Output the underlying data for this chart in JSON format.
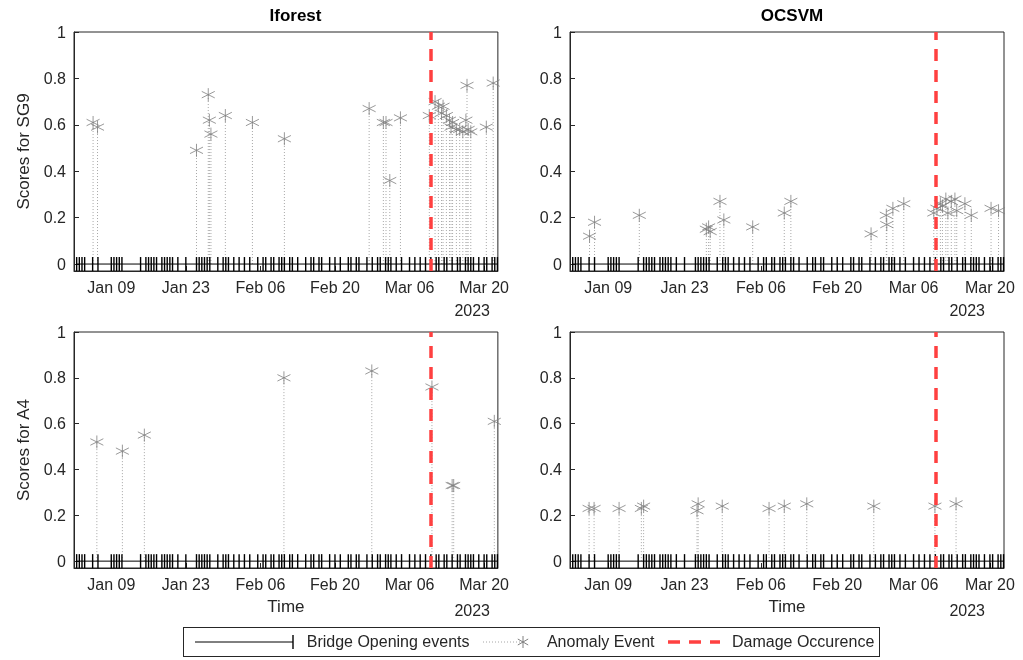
{
  "chart_data": [
    {
      "type": "lollipop",
      "title": "Iforest",
      "ylabel": "Scores for SG9",
      "xlim": [
        "2023-01-02",
        "2023-03-22T14:00"
      ],
      "ylim": [
        -0.03,
        1
      ],
      "yticks": [
        0,
        0.2,
        0.4,
        0.6,
        0.8,
        1
      ],
      "xticks": [
        {
          "value": "2023-01-09",
          "label": "Jan 09"
        },
        {
          "value": "2023-01-23",
          "label": "Jan 23"
        },
        {
          "value": "2023-02-06",
          "label": "Feb 06"
        },
        {
          "value": "2023-02-20",
          "label": "Feb 20"
        },
        {
          "value": "2023-03-06",
          "label": "Mar 06"
        },
        {
          "value": "2023-03-20",
          "label": "Mar 20"
        }
      ],
      "annotations": [
        "2023"
      ],
      "legend": "bottom",
      "series": [
        {
          "name": "Bridge Opening events",
          "type": "line",
          "color": "#000000",
          "x": [
            "2023-01-02T12:00",
            "2023-01-03",
            "2023-01-03T12:00",
            "2023-01-04",
            "2023-01-05T12:00",
            "2023-01-06T12:00",
            "2023-01-09",
            "2023-01-09T12:00",
            "2023-01-10",
            "2023-01-10T12:00",
            "2023-01-11",
            "2023-01-14T12:00",
            "2023-01-15T12:00",
            "2023-01-16",
            "2023-01-16T12:00",
            "2023-01-17",
            "2023-01-17T12:00",
            "2023-01-18T12:00",
            "2023-01-19",
            "2023-01-19T12:00",
            "2023-01-20",
            "2023-01-20T12:00",
            "2023-01-21T12:00",
            "2023-01-23",
            "2023-01-25",
            "2023-01-25T12:00",
            "2023-01-26",
            "2023-01-26T12:00",
            "2023-01-27",
            "2023-01-27T12:00",
            "2023-01-29",
            "2023-01-30",
            "2023-01-30T12:00",
            "2023-01-31",
            "2023-02-01",
            "2023-02-02",
            "2023-02-03",
            "2023-02-04",
            "2023-02-05T12:00",
            "2023-02-06T12:00",
            "2023-02-07",
            "2023-02-08",
            "2023-02-08T12:00",
            "2023-02-09T12:00",
            "2023-02-10",
            "2023-02-10T12:00",
            "2023-02-11T12:00",
            "2023-02-12",
            "2023-02-13",
            "2023-02-14T12:00",
            "2023-02-15T12:00",
            "2023-02-16",
            "2023-02-17",
            "2023-02-17T12:00",
            "2023-02-19",
            "2023-02-20",
            "2023-02-21",
            "2023-02-22T12:00",
            "2023-02-23",
            "2023-02-24",
            "2023-02-24T12:00",
            "2023-02-26",
            "2023-02-27",
            "2023-02-28",
            "2023-02-28T12:00",
            "2023-03-01T12:00",
            "2023-03-02",
            "2023-03-02T12:00",
            "2023-03-03T12:00",
            "2023-03-04T12:00",
            "2023-03-06",
            "2023-03-07",
            "2023-03-08",
            "2023-03-09",
            "2023-03-10",
            "2023-03-11",
            "2023-03-11T12:00",
            "2023-03-12T12:00",
            "2023-03-13",
            "2023-03-14",
            "2023-03-15",
            "2023-03-15T12:00",
            "2023-03-16T12:00",
            "2023-03-17",
            "2023-03-17T12:00",
            "2023-03-18",
            "2023-03-19",
            "2023-03-20",
            "2023-03-20T12:00",
            "2023-03-21T12:00",
            "2023-03-22",
            "2023-03-22T12:00"
          ],
          "values": [
            0,
            0,
            0,
            0,
            0,
            0,
            0,
            0,
            0,
            0,
            0,
            0,
            0,
            0,
            0,
            0,
            0,
            0,
            0,
            0,
            0,
            0,
            0,
            0,
            0,
            0,
            0,
            0,
            0,
            0,
            0,
            0,
            0,
            0,
            0,
            0,
            0,
            0,
            0,
            0,
            0,
            0,
            0,
            0,
            0,
            0,
            0,
            0,
            0,
            0,
            0,
            0,
            0,
            0,
            0,
            0,
            0,
            0,
            0,
            0,
            0,
            0,
            0,
            0,
            0,
            0,
            0,
            0,
            0,
            0,
            0,
            0,
            0,
            0,
            0,
            0,
            0,
            0,
            0,
            0,
            0,
            0,
            0,
            0,
            0,
            0,
            0,
            0,
            0,
            0,
            0,
            0
          ]
        },
        {
          "name": "Anomaly Event",
          "color": "#808080",
          "marker": "cross",
          "line_style": "dotted",
          "x": [
            "2023-01-05T14:00",
            "2023-01-06T10:00",
            "2023-01-25",
            "2023-01-27T05:00",
            "2023-01-27T10:00",
            "2023-01-27T17:00",
            "2023-01-30T10:00",
            "2023-02-04T12:00",
            "2023-02-10T12:00",
            "2023-02-26T10:00",
            "2023-03-01T02:00",
            "2023-03-01T14:00",
            "2023-03-02T07:00",
            "2023-03-04T07:00",
            "2023-03-09T17:00",
            "2023-03-10T19:00",
            "2023-03-11T10:00",
            "2023-03-12",
            "2023-03-12T07:00",
            "2023-03-12T22:00",
            "2023-03-13T12:00",
            "2023-03-13T19:00",
            "2023-03-14T02:00",
            "2023-03-14T19:00",
            "2023-03-15T10:00",
            "2023-03-16",
            "2023-03-16T14:00",
            "2023-03-16T19:00",
            "2023-03-17",
            "2023-03-17T12:00",
            "2023-03-20T10:00",
            "2023-03-21T17:00"
          ],
          "values": [
            0.61,
            0.59,
            0.49,
            0.73,
            0.62,
            0.56,
            0.64,
            0.61,
            0.54,
            0.67,
            0.61,
            0.61,
            0.36,
            0.63,
            0.64,
            0.7,
            0.68,
            0.65,
            0.68,
            0.64,
            0.62,
            0.59,
            0.61,
            0.58,
            0.58,
            0.57,
            0.62,
            0.77,
            0.58,
            0.57,
            0.59,
            0.78
          ]
        }
      ],
      "ref_lines": [
        {
          "axis": "x",
          "value": "2023-03-10",
          "label": "Damage Occurence",
          "color": "#ff4040",
          "line_style": "dashed"
        }
      ]
    },
    {
      "type": "lollipop",
      "title": "OCSVM",
      "xlim": [
        "2023-01-02",
        "2023-03-22T14:00"
      ],
      "ylim": [
        -0.03,
        1
      ],
      "yticks": [
        0,
        0.2,
        0.4,
        0.6,
        0.8,
        1
      ],
      "xticks": [
        {
          "value": "2023-01-09",
          "label": "Jan 09"
        },
        {
          "value": "2023-01-23",
          "label": "Jan 23"
        },
        {
          "value": "2023-02-06",
          "label": "Feb 06"
        },
        {
          "value": "2023-02-20",
          "label": "Feb 20"
        },
        {
          "value": "2023-03-06",
          "label": "Mar 06"
        },
        {
          "value": "2023-03-20",
          "label": "Mar 20"
        }
      ],
      "annotations": [
        "2023"
      ],
      "series": [
        {
          "type": "line",
          "color": "#000000",
          "x": [
            "2023-01-02T12:00",
            "2023-01-03",
            "2023-01-03T12:00",
            "2023-01-04",
            "2023-01-05T12:00",
            "2023-01-06T12:00",
            "2023-01-09",
            "2023-01-09T12:00",
            "2023-01-10",
            "2023-01-10T12:00",
            "2023-01-11",
            "2023-01-14T12:00",
            "2023-01-15T12:00",
            "2023-01-16",
            "2023-01-16T12:00",
            "2023-01-17",
            "2023-01-17T12:00",
            "2023-01-18T12:00",
            "2023-01-19",
            "2023-01-19T12:00",
            "2023-01-20",
            "2023-01-20T12:00",
            "2023-01-21T12:00",
            "2023-01-23",
            "2023-01-25",
            "2023-01-25T12:00",
            "2023-01-26",
            "2023-01-26T12:00",
            "2023-01-27",
            "2023-01-27T12:00",
            "2023-01-29",
            "2023-01-30",
            "2023-01-30T12:00",
            "2023-01-31",
            "2023-02-01",
            "2023-02-02",
            "2023-02-03",
            "2023-02-04",
            "2023-02-05T12:00",
            "2023-02-06T12:00",
            "2023-02-07",
            "2023-02-08",
            "2023-02-08T12:00",
            "2023-02-09T12:00",
            "2023-02-10",
            "2023-02-10T12:00",
            "2023-02-11T12:00",
            "2023-02-12",
            "2023-02-13",
            "2023-02-14T12:00",
            "2023-02-15T12:00",
            "2023-02-16",
            "2023-02-17",
            "2023-02-17T12:00",
            "2023-02-19",
            "2023-02-20",
            "2023-02-21",
            "2023-02-22T12:00",
            "2023-02-23",
            "2023-02-24",
            "2023-02-24T12:00",
            "2023-02-26",
            "2023-02-27",
            "2023-02-28",
            "2023-02-28T12:00",
            "2023-03-01T12:00",
            "2023-03-02",
            "2023-03-02T12:00",
            "2023-03-03T12:00",
            "2023-03-04T12:00",
            "2023-03-06",
            "2023-03-07",
            "2023-03-08",
            "2023-03-09",
            "2023-03-10",
            "2023-03-11",
            "2023-03-11T12:00",
            "2023-03-12T12:00",
            "2023-03-13",
            "2023-03-14",
            "2023-03-15",
            "2023-03-15T12:00",
            "2023-03-16T12:00",
            "2023-03-17",
            "2023-03-17T12:00",
            "2023-03-18",
            "2023-03-19",
            "2023-03-20",
            "2023-03-20T12:00",
            "2023-03-21T12:00",
            "2023-03-22",
            "2023-03-22T12:00"
          ],
          "values": [
            0,
            0,
            0,
            0,
            0,
            0,
            0,
            0,
            0,
            0,
            0,
            0,
            0,
            0,
            0,
            0,
            0,
            0,
            0,
            0,
            0,
            0,
            0,
            0,
            0,
            0,
            0,
            0,
            0,
            0,
            0,
            0,
            0,
            0,
            0,
            0,
            0,
            0,
            0,
            0,
            0,
            0,
            0,
            0,
            0,
            0,
            0,
            0,
            0,
            0,
            0,
            0,
            0,
            0,
            0,
            0,
            0,
            0,
            0,
            0,
            0,
            0,
            0,
            0,
            0,
            0,
            0,
            0,
            0,
            0,
            0,
            0,
            0,
            0,
            0,
            0,
            0,
            0,
            0,
            0,
            0,
            0,
            0,
            0,
            0,
            0,
            0,
            0,
            0,
            0,
            0,
            0
          ]
        },
        {
          "color": "#808080",
          "marker": "cross",
          "line_style": "dotted",
          "x": [
            "2023-01-05T14:00",
            "2023-01-06T12:00",
            "2023-01-14T17:00",
            "2023-01-27",
            "2023-01-27T10:00",
            "2023-01-27T17:00",
            "2023-01-29T12:00",
            "2023-01-30T05:00",
            "2023-02-04T12:00",
            "2023-02-10T07:00",
            "2023-02-11T12:00",
            "2023-02-26T05:00",
            "2023-03-01",
            "2023-03-01T02:00",
            "2023-03-02T05:00",
            "2023-03-04T05:00",
            "2023-03-09T17:00",
            "2023-03-10T07:00",
            "2023-03-10T22:00",
            "2023-03-11T07:00",
            "2023-03-11T22:00",
            "2023-03-12T07:00",
            "2023-03-12T22:00",
            "2023-03-13T14:00",
            "2023-03-13T22:00",
            "2023-03-15T10:00",
            "2023-03-16T14:00",
            "2023-03-20T05:00",
            "2023-03-21T14:00"
          ],
          "values": [
            0.12,
            0.18,
            0.21,
            0.15,
            0.16,
            0.14,
            0.27,
            0.19,
            0.16,
            0.22,
            0.27,
            0.13,
            0.21,
            0.17,
            0.24,
            0.26,
            0.22,
            0.24,
            0.26,
            0.25,
            0.28,
            0.22,
            0.27,
            0.28,
            0.23,
            0.26,
            0.21,
            0.24,
            0.23
          ]
        }
      ],
      "ref_lines": [
        {
          "axis": "x",
          "value": "2023-03-10",
          "color": "#ff4040",
          "line_style": "dashed"
        }
      ]
    },
    {
      "type": "lollipop",
      "ylabel": "Scores for A4",
      "xlabel": "Time",
      "xlim": [
        "2023-01-02",
        "2023-03-22T14:00"
      ],
      "ylim": [
        -0.03,
        1
      ],
      "yticks": [
        0,
        0.2,
        0.4,
        0.6,
        0.8,
        1
      ],
      "xticks": [
        {
          "value": "2023-01-09",
          "label": "Jan 09"
        },
        {
          "value": "2023-01-23",
          "label": "Jan 23"
        },
        {
          "value": "2023-02-06",
          "label": "Feb 06"
        },
        {
          "value": "2023-02-20",
          "label": "Feb 20"
        },
        {
          "value": "2023-03-06",
          "label": "Mar 06"
        },
        {
          "value": "2023-03-20",
          "label": "Mar 20"
        }
      ],
      "annotations": [
        "2023"
      ],
      "series": [
        {
          "type": "line",
          "color": "#000000",
          "x": [
            "2023-01-02T12:00",
            "2023-01-03",
            "2023-01-03T12:00",
            "2023-01-04",
            "2023-01-05T12:00",
            "2023-01-06T12:00",
            "2023-01-09",
            "2023-01-09T12:00",
            "2023-01-10",
            "2023-01-10T12:00",
            "2023-01-11",
            "2023-01-14T12:00",
            "2023-01-15T12:00",
            "2023-01-16",
            "2023-01-16T12:00",
            "2023-01-17",
            "2023-01-17T12:00",
            "2023-01-18T12:00",
            "2023-01-19",
            "2023-01-19T12:00",
            "2023-01-20",
            "2023-01-20T12:00",
            "2023-01-21T12:00",
            "2023-01-23",
            "2023-01-25",
            "2023-01-25T12:00",
            "2023-01-26",
            "2023-01-26T12:00",
            "2023-01-27",
            "2023-01-27T12:00",
            "2023-01-29",
            "2023-01-30",
            "2023-01-30T12:00",
            "2023-01-31",
            "2023-02-01",
            "2023-02-02",
            "2023-02-03",
            "2023-02-04",
            "2023-02-05T12:00",
            "2023-02-06T12:00",
            "2023-02-07",
            "2023-02-08",
            "2023-02-08T12:00",
            "2023-02-09T12:00",
            "2023-02-10",
            "2023-02-10T12:00",
            "2023-02-11T12:00",
            "2023-02-12",
            "2023-02-13",
            "2023-02-14T12:00",
            "2023-02-15T12:00",
            "2023-02-16",
            "2023-02-17",
            "2023-02-17T12:00",
            "2023-02-19",
            "2023-02-20",
            "2023-02-21",
            "2023-02-22T12:00",
            "2023-02-23",
            "2023-02-24",
            "2023-02-24T12:00",
            "2023-02-26",
            "2023-02-27",
            "2023-02-28",
            "2023-02-28T12:00",
            "2023-03-01T12:00",
            "2023-03-02",
            "2023-03-02T12:00",
            "2023-03-03T12:00",
            "2023-03-04T12:00",
            "2023-03-06",
            "2023-03-07",
            "2023-03-08",
            "2023-03-09",
            "2023-03-10",
            "2023-03-11",
            "2023-03-11T12:00",
            "2023-03-12T12:00",
            "2023-03-13",
            "2023-03-14",
            "2023-03-15",
            "2023-03-15T12:00",
            "2023-03-16T12:00",
            "2023-03-17",
            "2023-03-17T12:00",
            "2023-03-18",
            "2023-03-19",
            "2023-03-20",
            "2023-03-20T12:00",
            "2023-03-21T12:00",
            "2023-03-22",
            "2023-03-22T12:00"
          ],
          "values": [
            0,
            0,
            0,
            0,
            0,
            0,
            0,
            0,
            0,
            0,
            0,
            0,
            0,
            0,
            0,
            0,
            0,
            0,
            0,
            0,
            0,
            0,
            0,
            0,
            0,
            0,
            0,
            0,
            0,
            0,
            0,
            0,
            0,
            0,
            0,
            0,
            0,
            0,
            0,
            0,
            0,
            0,
            0,
            0,
            0,
            0,
            0,
            0,
            0,
            0,
            0,
            0,
            0,
            0,
            0,
            0,
            0,
            0,
            0,
            0,
            0,
            0,
            0,
            0,
            0,
            0,
            0,
            0,
            0,
            0,
            0,
            0,
            0,
            0,
            0,
            0,
            0,
            0,
            0,
            0,
            0,
            0,
            0,
            0,
            0,
            0,
            0,
            0,
            0,
            0,
            0,
            0
          ]
        },
        {
          "color": "#808080",
          "marker": "cross",
          "line_style": "dotted",
          "x": [
            "2023-01-06T07:00",
            "2023-01-11T02:00",
            "2023-01-15T05:00",
            "2023-02-10T10:00",
            "2023-02-26T22:00",
            "2023-03-10T05:00",
            "2023-03-14",
            "2023-03-14T07:00",
            "2023-03-21T22:00"
          ],
          "values": [
            0.52,
            0.48,
            0.55,
            0.8,
            0.83,
            0.76,
            0.33,
            0.33,
            0.61
          ]
        }
      ],
      "ref_lines": [
        {
          "axis": "x",
          "value": "2023-03-10",
          "color": "#ff4040",
          "line_style": "dashed"
        }
      ]
    },
    {
      "type": "lollipop",
      "xlabel": "Time",
      "xlim": [
        "2023-01-02",
        "2023-03-22T14:00"
      ],
      "ylim": [
        -0.03,
        1
      ],
      "yticks": [
        0,
        0.2,
        0.4,
        0.6,
        0.8,
        1
      ],
      "xticks": [
        {
          "value": "2023-01-09",
          "label": "Jan 09"
        },
        {
          "value": "2023-01-23",
          "label": "Jan 23"
        },
        {
          "value": "2023-02-06",
          "label": "Feb 06"
        },
        {
          "value": "2023-02-20",
          "label": "Feb 20"
        },
        {
          "value": "2023-03-06",
          "label": "Mar 06"
        },
        {
          "value": "2023-03-20",
          "label": "Mar 20"
        }
      ],
      "annotations": [
        "2023"
      ],
      "series": [
        {
          "type": "line",
          "color": "#000000",
          "x": [
            "2023-01-02T12:00",
            "2023-01-03",
            "2023-01-03T12:00",
            "2023-01-04",
            "2023-01-05T12:00",
            "2023-01-06T12:00",
            "2023-01-09",
            "2023-01-09T12:00",
            "2023-01-10",
            "2023-01-10T12:00",
            "2023-01-11",
            "2023-01-14T12:00",
            "2023-01-15T12:00",
            "2023-01-16",
            "2023-01-16T12:00",
            "2023-01-17",
            "2023-01-17T12:00",
            "2023-01-18T12:00",
            "2023-01-19",
            "2023-01-19T12:00",
            "2023-01-20",
            "2023-01-20T12:00",
            "2023-01-21T12:00",
            "2023-01-23",
            "2023-01-25",
            "2023-01-25T12:00",
            "2023-01-26",
            "2023-01-26T12:00",
            "2023-01-27",
            "2023-01-27T12:00",
            "2023-01-29",
            "2023-01-30",
            "2023-01-30T12:00",
            "2023-01-31",
            "2023-02-01",
            "2023-02-02",
            "2023-02-03",
            "2023-02-04",
            "2023-02-05T12:00",
            "2023-02-06T12:00",
            "2023-02-07",
            "2023-02-08",
            "2023-02-08T12:00",
            "2023-02-09T12:00",
            "2023-02-10",
            "2023-02-10T12:00",
            "2023-02-11T12:00",
            "2023-02-12",
            "2023-02-13",
            "2023-02-14T12:00",
            "2023-02-15T12:00",
            "2023-02-16",
            "2023-02-17",
            "2023-02-17T12:00",
            "2023-02-19",
            "2023-02-20",
            "2023-02-21",
            "2023-02-22T12:00",
            "2023-02-23",
            "2023-02-24",
            "2023-02-24T12:00",
            "2023-02-26",
            "2023-02-27",
            "2023-02-28",
            "2023-02-28T12:00",
            "2023-03-01T12:00",
            "2023-03-02",
            "2023-03-02T12:00",
            "2023-03-03T12:00",
            "2023-03-04T12:00",
            "2023-03-06",
            "2023-03-07",
            "2023-03-08",
            "2023-03-09",
            "2023-03-10",
            "2023-03-11",
            "2023-03-11T12:00",
            "2023-03-12T12:00",
            "2023-03-13",
            "2023-03-14",
            "2023-03-15",
            "2023-03-15T12:00",
            "2023-03-16T12:00",
            "2023-03-17",
            "2023-03-17T12:00",
            "2023-03-18",
            "2023-03-19",
            "2023-03-20",
            "2023-03-20T12:00",
            "2023-03-21T12:00",
            "2023-03-22",
            "2023-03-22T12:00"
          ],
          "values": [
            0,
            0,
            0,
            0,
            0,
            0,
            0,
            0,
            0,
            0,
            0,
            0,
            0,
            0,
            0,
            0,
            0,
            0,
            0,
            0,
            0,
            0,
            0,
            0,
            0,
            0,
            0,
            0,
            0,
            0,
            0,
            0,
            0,
            0,
            0,
            0,
            0,
            0,
            0,
            0,
            0,
            0,
            0,
            0,
            0,
            0,
            0,
            0,
            0,
            0,
            0,
            0,
            0,
            0,
            0,
            0,
            0,
            0,
            0,
            0,
            0,
            0,
            0,
            0,
            0,
            0,
            0,
            0,
            0,
            0,
            0,
            0,
            0,
            0,
            0,
            0,
            0,
            0,
            0,
            0,
            0,
            0,
            0,
            0,
            0,
            0,
            0,
            0,
            0,
            0,
            0,
            0
          ]
        },
        {
          "color": "#808080",
          "marker": "cross",
          "line_style": "dotted",
          "x": [
            "2023-01-05T12:00",
            "2023-01-06T10:00",
            "2023-01-11",
            "2023-01-15T02:00",
            "2023-01-15T12:00",
            "2023-01-25T07:00",
            "2023-01-25T12:00",
            "2023-01-29T22:00",
            "2023-02-07T12:00",
            "2023-02-10T07:00",
            "2023-02-14T10:00",
            "2023-02-26T17:00",
            "2023-03-09T22:00",
            "2023-03-13T19:00"
          ],
          "values": [
            0.23,
            0.23,
            0.23,
            0.23,
            0.24,
            0.22,
            0.25,
            0.24,
            0.23,
            0.24,
            0.25,
            0.24,
            0.24,
            0.25
          ]
        }
      ],
      "ref_lines": [
        {
          "axis": "x",
          "value": "2023-03-10",
          "color": "#ff4040",
          "line_style": "dashed"
        }
      ]
    }
  ]
}
